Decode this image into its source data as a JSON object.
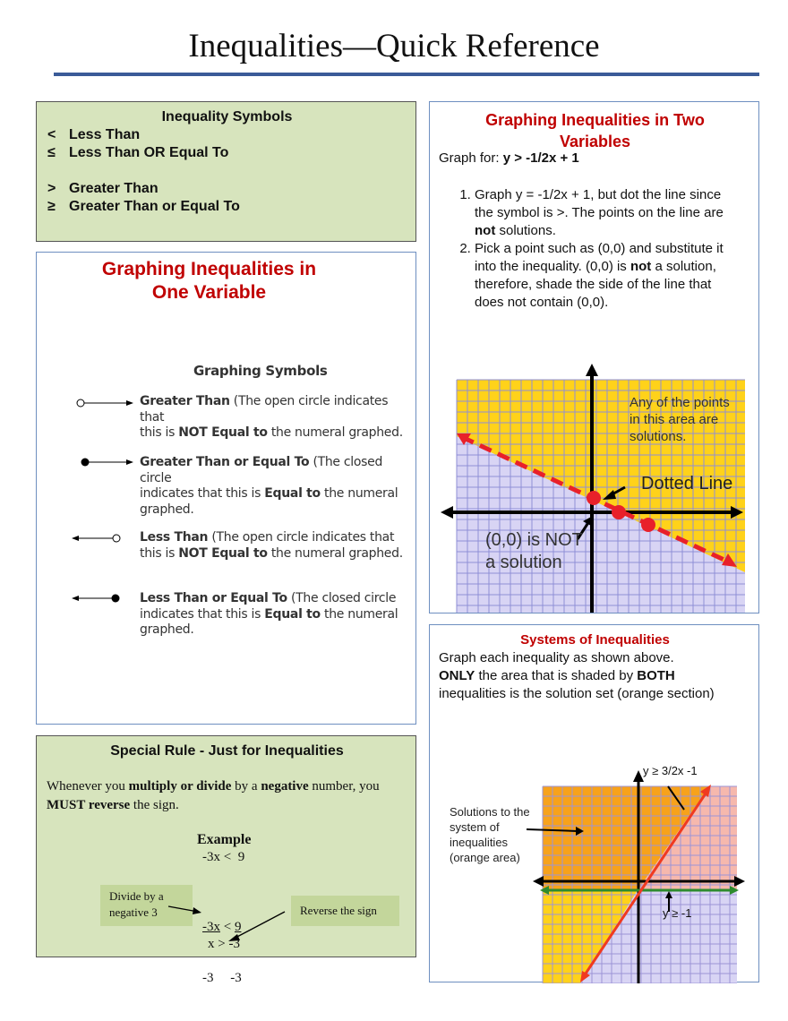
{
  "title": "Inequalities—Quick Reference",
  "symbols": {
    "heading": "Inequality Symbols",
    "items": [
      {
        "sym": "<",
        "label": "Less Than"
      },
      {
        "sym": "≤",
        "label": "Less Than OR Equal To"
      },
      {
        "sym": ">",
        "label": "Greater Than"
      },
      {
        "sym": "≥",
        "label": "Greater Than or Equal To"
      }
    ]
  },
  "one_var": {
    "heading_line1": "Graphing Inequalities in",
    "heading_line2": "One Variable",
    "subheading": "Graphing Symbols",
    "items": [
      {
        "bold": "Greater Than",
        "rest1": "  (The open circle indicates that",
        "line2a": "this is ",
        "line2b": "NOT Equal to",
        "line2c": " the numeral graphed.",
        "line3": ""
      },
      {
        "bold": "Greater Than or Equal To",
        "rest1": "  (The closed circle",
        "line2a": "indicates that this is ",
        "line2b": "Equal to",
        "line2c": " the numeral",
        "line3": "graphed."
      },
      {
        "bold": "Less Than",
        "rest1": "  (The open circle indicates that",
        "line2a": "this is ",
        "line2b": "NOT Equal to",
        "line2c": " the numeral graphed.",
        "line3": ""
      },
      {
        "bold": "Less Than or Equal To",
        "rest1": "  (The closed circle",
        "line2a": "indicates that this is ",
        "line2b": "Equal to",
        "line2c": " the numeral",
        "line3": "graphed."
      }
    ]
  },
  "two_var": {
    "heading_line1": "Graphing Inequalities in Two",
    "heading_line2": "Variables",
    "graph_for_label": "Graph for:  ",
    "graph_for_value": "y > -1/2x + 1",
    "step1a": "Graph y = -1/2x + 1, but dot the line since the symbol is >.  The points on the line are ",
    "step1b": "not",
    "step1c": " solutions.",
    "step2a": "  Pick a point such as (0,0) and substitute it into the inequality.  (0,0) is ",
    "step2b": "not",
    "step2c": " a solution, therefore, shade the side of the line that does not contain (0,0).",
    "graph_labels": {
      "area1": "Any of the points",
      "area2": "in this area are",
      "area3": "solutions.",
      "dotted": "Dotted Line",
      "origin1": "(0,0) is NOT",
      "origin2": "a solution"
    }
  },
  "systems": {
    "heading": "Systems of Inequalities",
    "line1": "Graph each inequality as shown above.",
    "bold1": "ONLY",
    "mid": " the area that is shaded by ",
    "bold2": "BOTH",
    "end": " inequalities is the solution set (orange section)",
    "graph_labels": {
      "ineq1": "y ≥ 3/2x -1",
      "ineq2": "y ≥ -1",
      "sol1": "Solutions to the",
      "sol2": "system of",
      "sol3": "inequalities",
      "sol4": "(orange area)"
    }
  },
  "special": {
    "heading": "Special Rule - Just for Inequalities",
    "t1": "Whenever you ",
    "b1": "multiply or divide",
    "t2": " by a ",
    "b2": "negative",
    "t3": " number, you ",
    "b3": "MUST reverse",
    "t4": " the sign.",
    "example_label": "Example",
    "ex1": "-3x <  9",
    "num_left": "-3x",
    "num_op": " < ",
    "num_right": "9",
    "den": "-3     -3",
    "result": "x > -3",
    "note_left": "Divide by a negative 3",
    "note_right": "Reverse the sign"
  },
  "colors": {
    "title_rule": "#3b5b98",
    "green_box": "#d7e4bd",
    "heading_red": "#c00000",
    "note_green": "#c3d69b",
    "yellow": "#ffd21a",
    "orange": "#f7a21b",
    "lavender": "#d8d4f4"
  }
}
